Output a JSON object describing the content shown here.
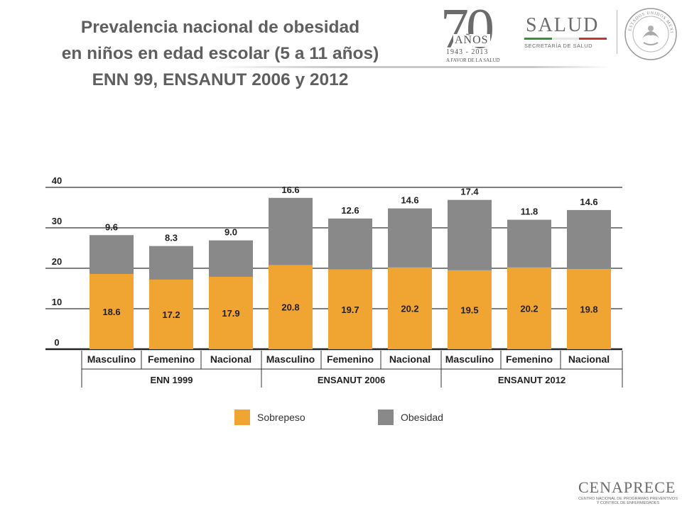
{
  "title": {
    "line1": "Prevalencia nacional de obesidad",
    "line2": "en niños en edad escolar (5 a 11 años)",
    "line3": "ENN 99, ENSANUT 2006 y 2012"
  },
  "logos": {
    "anniversary_number": "70",
    "anniversary_word": "AÑOS",
    "anniversary_years": "1943 - 2013",
    "anniversary_motto": "A FAVOR DE LA SALUD",
    "salud_name": "SALUD",
    "salud_sub": "SECRETARÍA DE SALUD",
    "seal_text": "ESTADOS UNIDOS MEXICANOS",
    "cenaprece_name": "CENAPRECE",
    "cenaprece_sub1": "CENTRO NACIONAL DE PROGRAMAS PREVENTIVOS",
    "cenaprece_sub2": "Y CONTROL DE ENFERMEDADES"
  },
  "colors": {
    "sobrepeso": "#f0a431",
    "obesidad": "#898989",
    "title": "#5f5f5f",
    "flag_green": "#3a8f3a",
    "flag_white": "#e5e5e5",
    "flag_red": "#c8322f"
  },
  "chart_data": {
    "type": "bar",
    "stacked": true,
    "categories": [
      "Masculino",
      "Femenino",
      "Nacional",
      "Masculino",
      "Femenino",
      "Nacional",
      "Masculino",
      "Femenino",
      "Nacional"
    ],
    "groups": [
      {
        "label": "ENN 1999",
        "count": 3
      },
      {
        "label": "ENSANUT 2006",
        "count": 3
      },
      {
        "label": "ENSANUT 2012",
        "count": 3
      }
    ],
    "series": [
      {
        "name": "Sobrepeso",
        "values": [
          18.6,
          17.2,
          17.9,
          20.8,
          19.7,
          20.2,
          19.5,
          20.2,
          19.8
        ]
      },
      {
        "name": "Obesidad",
        "values": [
          9.6,
          8.3,
          9.0,
          16.6,
          12.6,
          14.6,
          17.4,
          11.8,
          14.6
        ]
      }
    ],
    "value_labels": {
      "sobrepeso": [
        "18.6",
        "17.2",
        "17.9",
        "20.8",
        "19.7",
        "20.2",
        "19.5",
        "20.2",
        "19.8"
      ],
      "obesidad": [
        "9.6",
        "8.3",
        "9.0",
        "16.6",
        "12.6",
        "14.6",
        "17.4",
        "11.8",
        "14.6"
      ]
    },
    "yticks": [
      0,
      10,
      20,
      30,
      40
    ],
    "ylim": [
      0,
      40
    ],
    "grid": true,
    "legend_position": "bottom"
  }
}
